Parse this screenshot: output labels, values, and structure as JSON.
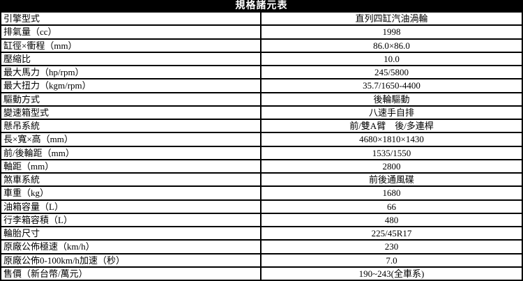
{
  "title": "規格諸元表",
  "colors": {
    "title_background": "#000000",
    "title_text": "#ffffff",
    "border": "#000000",
    "table_background": "#ffffff"
  },
  "table": {
    "rows": [
      {
        "label": "引擎型式",
        "value": "直列四缸汽油渦輪"
      },
      {
        "label": "排氣量（cc）",
        "value": "1998"
      },
      {
        "label": "缸徑×衝程（mm）",
        "value": "86.0×86.0"
      },
      {
        "label": "壓縮比",
        "value": "10.0"
      },
      {
        "label": "最大馬力（hp/rpm）",
        "value": "245/5800"
      },
      {
        "label": "最大扭力（kgm/rpm）",
        "value": "35.7/1650-4400"
      },
      {
        "label": "驅動方式",
        "value": "後輪驅動"
      },
      {
        "label": "變速箱型式",
        "value": "八速手自排"
      },
      {
        "label": "懸吊系統",
        "value": "前/雙A臂　後/多連桿"
      },
      {
        "label": "長×寬×高（mm）",
        "value": "4680×1810×1430"
      },
      {
        "label": "前/後輪距（mm）",
        "value": "1535/1550"
      },
      {
        "label": "軸距（mm）",
        "value": "2800"
      },
      {
        "label": "煞車系統",
        "value": "前後通風碟"
      },
      {
        "label": "車重（kg）",
        "value": "1680"
      },
      {
        "label": "油箱容量（L）",
        "value": "66"
      },
      {
        "label": "行李箱容積（L）",
        "value": "480"
      },
      {
        "label": "輪胎尺寸",
        "value": "225/45R17"
      },
      {
        "label": "原廠公佈極速（km/h）",
        "value": "230"
      },
      {
        "label": "原廠公佈0-100km/h加速（秒）",
        "value": "7.0"
      },
      {
        "label": "售價（新台幣/萬元）",
        "value": "190~243(全車系)"
      }
    ]
  }
}
